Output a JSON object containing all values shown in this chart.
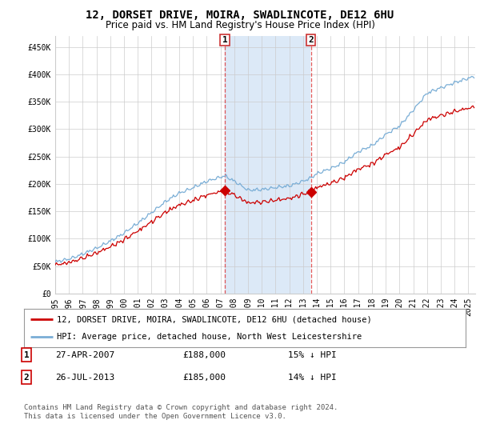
{
  "title": "12, DORSET DRIVE, MOIRA, SWADLINCOTE, DE12 6HU",
  "subtitle": "Price paid vs. HM Land Registry's House Price Index (HPI)",
  "ylabel_ticks": [
    "£0",
    "£50K",
    "£100K",
    "£150K",
    "£200K",
    "£250K",
    "£300K",
    "£350K",
    "£400K",
    "£450K"
  ],
  "ytick_values": [
    0,
    50000,
    100000,
    150000,
    200000,
    250000,
    300000,
    350000,
    400000,
    450000
  ],
  "ylim": [
    0,
    470000
  ],
  "xlim_start": 1995.0,
  "xlim_end": 2025.5,
  "shade_color": "#dce9f7",
  "hpi_color": "#7aaed6",
  "price_color": "#cc0000",
  "background_color": "#ffffff",
  "grid_color": "#cccccc",
  "sale1_x": 2007.32,
  "sale1_y": 188000,
  "sale1_label": "1",
  "sale1_date": "27-APR-2007",
  "sale1_price": "£188,000",
  "sale1_hpi": "15% ↓ HPI",
  "sale2_x": 2013.57,
  "sale2_y": 185000,
  "sale2_label": "2",
  "sale2_date": "26-JUL-2013",
  "sale2_price": "£185,000",
  "sale2_hpi": "14% ↓ HPI",
  "legend_line1": "12, DORSET DRIVE, MOIRA, SWADLINCOTE, DE12 6HU (detached house)",
  "legend_line2": "HPI: Average price, detached house, North West Leicestershire",
  "footnote": "Contains HM Land Registry data © Crown copyright and database right 2024.\nThis data is licensed under the Open Government Licence v3.0.",
  "title_fontsize": 10,
  "subtitle_fontsize": 8.5,
  "tick_fontsize": 7,
  "xtick_years": [
    1995,
    1996,
    1997,
    1998,
    1999,
    2000,
    2001,
    2002,
    2003,
    2004,
    2005,
    2006,
    2007,
    2008,
    2009,
    2010,
    2011,
    2012,
    2013,
    2014,
    2015,
    2016,
    2017,
    2018,
    2019,
    2020,
    2021,
    2022,
    2023,
    2024,
    2025
  ]
}
